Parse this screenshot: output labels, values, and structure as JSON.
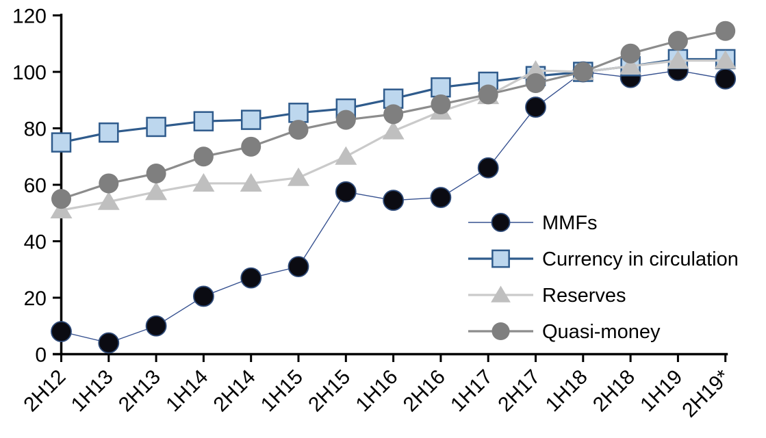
{
  "page": {
    "background_color": "#ffffff",
    "text_color": "#000000"
  },
  "chart_data": {
    "type": "line",
    "title": "",
    "xlabel": "",
    "ylabel": "",
    "grid": false,
    "legend_position": "inside-right",
    "ylim": [
      0,
      120
    ],
    "yticks": [
      0,
      20,
      40,
      60,
      80,
      100,
      120
    ],
    "categories": [
      "2H12",
      "1H13",
      "2H13",
      "1H14",
      "2H14",
      "1H15",
      "2H15",
      "1H16",
      "2H16",
      "1H17",
      "2H17",
      "1H18",
      "2H18",
      "1H19",
      "2H19*"
    ],
    "series": [
      {
        "name": "MMFs",
        "marker": "circle",
        "marker_fill": "#0b0b12",
        "marker_stroke": "#2e4a78",
        "marker_stroke_width": 1.8,
        "line_color": "#35508f",
        "line_width": 1.4,
        "values": [
          8,
          4,
          10,
          20.5,
          27,
          31,
          57.5,
          54.5,
          55.5,
          66,
          87.5,
          100,
          98,
          100.5,
          97.5
        ]
      },
      {
        "name": "Currency in circulation",
        "marker": "square",
        "marker_fill": "#bdd7ee",
        "marker_stroke": "#2f5b8c",
        "marker_stroke_width": 2.5,
        "line_color": "#2f5b8c",
        "line_width": 3.2,
        "values": [
          75,
          78.5,
          80.5,
          82.5,
          83,
          85.5,
          87,
          90.5,
          94.5,
          96.5,
          98.5,
          100,
          102,
          104.5,
          104.5
        ]
      },
      {
        "name": "Reserves",
        "marker": "triangle",
        "marker_fill": "#bfbfbf",
        "marker_stroke": "none",
        "marker_stroke_width": 0,
        "line_color": "#cacaca",
        "line_width": 3.2,
        "values": [
          51,
          54,
          57.5,
          60.5,
          60.5,
          62.5,
          70,
          79,
          86,
          91.5,
          100.5,
          100,
          102,
          104,
          104
        ]
      },
      {
        "name": "Quasi-money",
        "marker": "circle",
        "marker_fill": "#7f7f7f",
        "marker_stroke": "none",
        "marker_stroke_width": 0,
        "line_color": "#8c8c8c",
        "line_width": 3.2,
        "values": [
          55,
          60.5,
          64,
          70,
          73.5,
          79.5,
          83,
          85,
          88.5,
          92,
          96,
          100,
          106.5,
          111,
          114.5
        ]
      }
    ]
  }
}
